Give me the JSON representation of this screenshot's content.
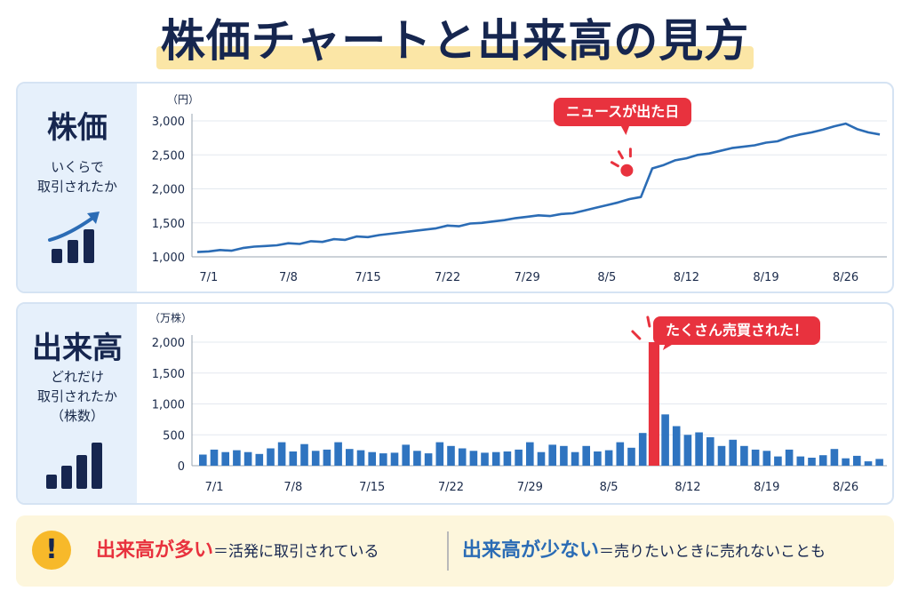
{
  "title": "株価チャートと出来高の見方",
  "price_panel": {
    "label": "株価",
    "desc_line1": "いくらで",
    "desc_line2": "取引されたか",
    "icon": "rising-bar-chart-icon",
    "unit": "（円）",
    "callout": "ニュースが出た日"
  },
  "volume_panel": {
    "label": "出来高",
    "desc_line1": "どれだけ",
    "desc_line2": "取引されたか",
    "desc_line3": "（株数）",
    "icon": "bar-chart-icon",
    "unit": "（万株）",
    "callout": "たくさん売買された！"
  },
  "bottom": {
    "icon": "exclamation-icon",
    "left_strong": "出来高が多い",
    "left_text": "＝活発に取引されている",
    "right_strong": "出来高が少ない",
    "right_text": "＝売りたいときに売れないことも"
  },
  "colors": {
    "line": "#2b6cb5",
    "bar": "#2f74c0",
    "highlight": "#e8323e",
    "navy": "#16264f"
  },
  "chart_data": [
    {
      "type": "line",
      "title": "",
      "ylabel": "（円）",
      "xticks": [
        "7/1",
        "7/8",
        "7/15",
        "7/22",
        "7/29",
        "8/5",
        "8/12",
        "8/19",
        "8/26"
      ],
      "yticks": [
        "1,000",
        "1,500",
        "2,000",
        "2,500",
        "3,000"
      ],
      "ylim": [
        1000,
        3000
      ],
      "grid": true,
      "series": [
        {
          "x": [
            "6/30",
            "7/1",
            "7/2",
            "7/3",
            "7/4",
            "7/5",
            "7/6",
            "7/7",
            "7/8",
            "7/9",
            "7/10",
            "7/11",
            "7/12",
            "7/13",
            "7/14",
            "7/15",
            "7/16",
            "7/17",
            "7/18",
            "7/19",
            "7/20",
            "7/21",
            "7/22",
            "7/23",
            "7/24",
            "7/25",
            "7/26",
            "7/27",
            "7/28",
            "7/29",
            "7/30",
            "7/31",
            "8/1",
            "8/2",
            "8/3",
            "8/4",
            "8/5",
            "8/6",
            "8/7",
            "8/8",
            "8/9",
            "8/10",
            "8/11",
            "8/12",
            "8/13",
            "8/14",
            "8/15",
            "8/16",
            "8/17",
            "8/18",
            "8/19",
            "8/20",
            "8/21",
            "8/22",
            "8/23",
            "8/24",
            "8/25",
            "8/26",
            "8/27",
            "8/28",
            "8/29"
          ],
          "values": [
            1070,
            1080,
            1100,
            1090,
            1130,
            1150,
            1160,
            1170,
            1200,
            1190,
            1230,
            1220,
            1260,
            1250,
            1300,
            1290,
            1320,
            1340,
            1360,
            1380,
            1400,
            1420,
            1460,
            1450,
            1490,
            1500,
            1520,
            1540,
            1570,
            1590,
            1610,
            1600,
            1630,
            1640,
            1680,
            1720,
            1760,
            1800,
            1850,
            1880,
            2300,
            2350,
            2420,
            2450,
            2500,
            2520,
            2560,
            2600,
            2620,
            2640,
            2680,
            2700,
            2760,
            2800,
            2830,
            2870,
            2920,
            2960,
            2880,
            2830,
            2800
          ]
        }
      ],
      "annotations": [
        {
          "x": "8/7",
          "y": 2350,
          "text": "ニュースが出た日"
        }
      ]
    },
    {
      "type": "bar",
      "title": "",
      "ylabel": "（万株）",
      "xticks": [
        "7/1",
        "7/8",
        "7/15",
        "7/22",
        "7/29",
        "8/5",
        "8/12",
        "8/19",
        "8/26"
      ],
      "yticks": [
        "0",
        "500",
        "1,000",
        "1,500",
        "2,000"
      ],
      "ylim": [
        0,
        2000
      ],
      "grid": true,
      "categories": [
        "6/30",
        "7/1",
        "7/2",
        "7/3",
        "7/4",
        "7/5",
        "7/6",
        "7/7",
        "7/8",
        "7/9",
        "7/10",
        "7/11",
        "7/12",
        "7/13",
        "7/14",
        "7/15",
        "7/16",
        "7/17",
        "7/18",
        "7/19",
        "7/20",
        "7/21",
        "7/22",
        "7/23",
        "7/24",
        "7/25",
        "7/26",
        "7/27",
        "7/28",
        "7/29",
        "7/30",
        "7/31",
        "8/1",
        "8/2",
        "8/3",
        "8/4",
        "8/5",
        "8/6",
        "8/7",
        "8/8",
        "8/9",
        "8/10",
        "8/11",
        "8/12",
        "8/13",
        "8/14",
        "8/15",
        "8/16",
        "8/17",
        "8/18",
        "8/19",
        "8/20",
        "8/21",
        "8/22",
        "8/23",
        "8/24",
        "8/25",
        "8/26",
        "8/27",
        "8/28",
        "8/29"
      ],
      "values": [
        180,
        260,
        220,
        250,
        220,
        190,
        280,
        380,
        230,
        350,
        240,
        260,
        380,
        270,
        250,
        220,
        200,
        210,
        340,
        240,
        200,
        380,
        320,
        280,
        240,
        210,
        220,
        230,
        260,
        380,
        220,
        340,
        320,
        220,
        320,
        230,
        250,
        380,
        290,
        530,
        2000,
        830,
        640,
        500,
        540,
        460,
        320,
        420,
        320,
        260,
        240,
        150,
        260,
        150,
        130,
        170,
        270,
        120,
        160,
        70,
        110
      ],
      "highlight_index": 40,
      "annotations": [
        {
          "x": "8/9",
          "y": 2000,
          "text": "たくさん売買された！"
        }
      ]
    }
  ]
}
